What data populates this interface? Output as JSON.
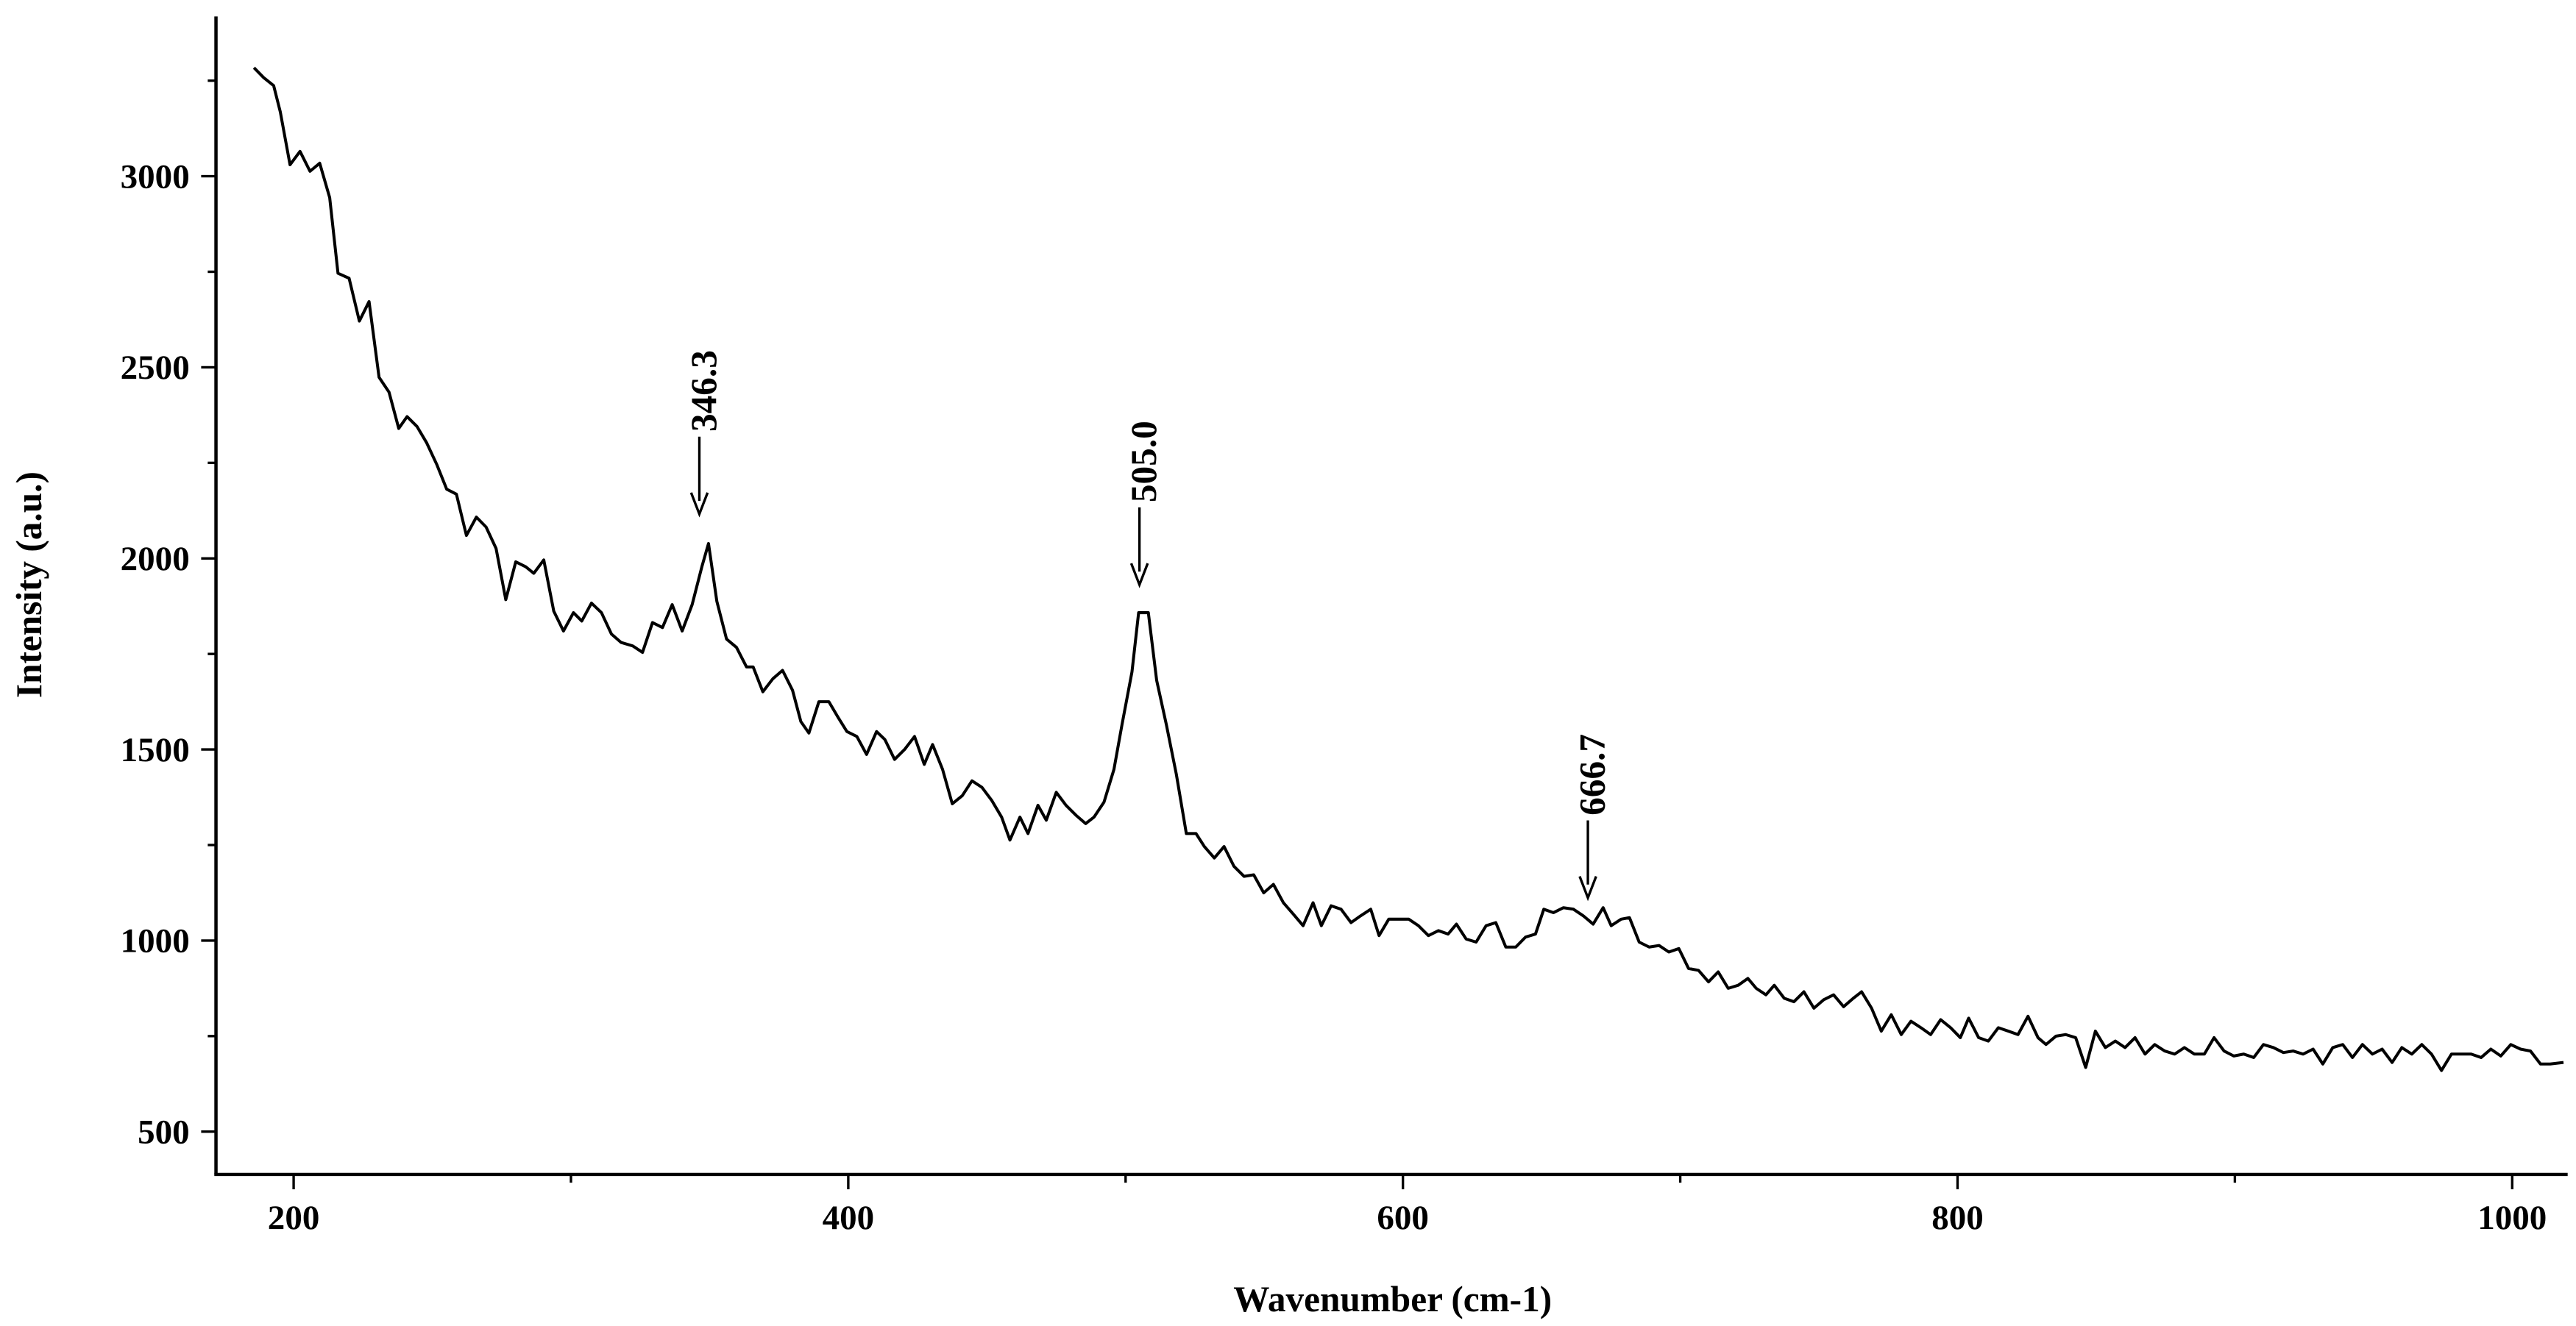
{
  "chart_data": {
    "type": "line",
    "xlabel": "Wavenumber (cm-1)",
    "ylabel": "Intensity (a.u.)",
    "xlim": [
      172,
      1020
    ],
    "ylim": [
      388,
      3418
    ],
    "xticks": [
      200,
      400,
      600,
      800,
      1000
    ],
    "yticks": [
      500,
      1000,
      1500,
      2000,
      2500,
      3000
    ],
    "xminorticks": [
      300,
      500,
      700,
      900
    ],
    "yminorticks": [
      750,
      1250,
      1750,
      2250,
      2750,
      3250
    ],
    "color": "#000000",
    "x": [
      185.7,
      189.2,
      192.8,
      195.2,
      198.7,
      202.3,
      205.9,
      209.4,
      213.0,
      216.0,
      220.0,
      223.7,
      227.2,
      230.8,
      234.4,
      237.9,
      240.9,
      244.5,
      248.0,
      251.6,
      255.2,
      258.7,
      262.3,
      265.9,
      269.4,
      273.0,
      276.5,
      280.1,
      283.7,
      286.6,
      290.2,
      293.8,
      297.3,
      300.9,
      303.9,
      307.4,
      311.0,
      314.6,
      318.1,
      322.3,
      325.8,
      329.4,
      333.0,
      336.5,
      340.1,
      343.7,
      347.2,
      349.6,
      352.6,
      356.1,
      359.7,
      363.3,
      365.7,
      369.2,
      372.8,
      376.3,
      379.9,
      382.9,
      385.8,
      389.4,
      393.0,
      396.5,
      399.5,
      403.1,
      406.6,
      410.2,
      413.2,
      416.7,
      420.3,
      423.9,
      427.4,
      430.4,
      434.0,
      437.5,
      441.1,
      444.6,
      448.2,
      451.8,
      455.3,
      458.3,
      461.9,
      464.8,
      468.4,
      471.4,
      475.0,
      478.5,
      482.1,
      485.6,
      488.6,
      492.2,
      495.8,
      498.7,
      502.3,
      504.7,
      508.2,
      511.2,
      514.7,
      518.3,
      521.9,
      525.4,
      528.4,
      532.0,
      535.5,
      539.1,
      542.7,
      546.2,
      549.8,
      553.3,
      556.9,
      560.5,
      564.0,
      567.6,
      570.6,
      574.1,
      577.7,
      581.3,
      584.8,
      588.4,
      591.4,
      594.9,
      598.5,
      602.1,
      605.6,
      609.2,
      612.8,
      616.3,
      619.3,
      622.8,
      626.4,
      630.0,
      633.5,
      637.1,
      640.7,
      644.2,
      647.8,
      650.8,
      654.3,
      657.9,
      661.5,
      665.0,
      668.6,
      672.2,
      675.1,
      678.7,
      681.7,
      685.2,
      688.8,
      692.4,
      695.9,
      699.5,
      703.0,
      706.6,
      710.2,
      713.7,
      717.3,
      720.9,
      724.4,
      727.4,
      730.9,
      733.9,
      737.5,
      741.0,
      744.6,
      748.2,
      751.7,
      755.3,
      758.9,
      762.4,
      765.4,
      769.0,
      772.5,
      776.1,
      779.7,
      783.2,
      786.8,
      790.3,
      793.9,
      797.5,
      801.0,
      804.0,
      807.6,
      811.1,
      814.7,
      818.3,
      821.8,
      825.4,
      829.0,
      831.9,
      835.5,
      839.0,
      842.6,
      846.2,
      849.7,
      853.3,
      856.9,
      860.4,
      864.0,
      867.6,
      871.1,
      874.7,
      878.3,
      881.8,
      885.4,
      889.0,
      892.5,
      896.1,
      899.6,
      903.2,
      906.8,
      910.3,
      913.9,
      917.5,
      921.0,
      924.6,
      928.2,
      931.7,
      935.3,
      938.9,
      942.4,
      946.0,
      949.6,
      953.1,
      956.7,
      960.2,
      963.8,
      967.4,
      970.9,
      974.5,
      978.1,
      981.6,
      985.2,
      988.8,
      992.3,
      995.9,
      999.5,
      1003.0,
      1006.6,
      1010.2,
      1013.7,
      1018.5
    ],
    "values": [
      3284,
      3258,
      3237,
      3168,
      3030,
      3065,
      3013,
      3034,
      2944,
      2746,
      2733,
      2621,
      2672,
      2474,
      2435,
      2340,
      2371,
      2345,
      2302,
      2246,
      2181,
      2168,
      2060,
      2108,
      2082,
      2026,
      1892,
      1991,
      1978,
      1961,
      1996,
      1862,
      1810,
      1858,
      1836,
      1883,
      1858,
      1802,
      1780,
      1771,
      1754,
      1832,
      1819,
      1879,
      1810,
      1879,
      1978,
      2039,
      1888,
      1789,
      1767,
      1716,
      1716,
      1651,
      1685,
      1707,
      1655,
      1573,
      1543,
      1625,
      1625,
      1582,
      1547,
      1534,
      1487,
      1547,
      1526,
      1474,
      1500,
      1534,
      1461,
      1513,
      1448,
      1358,
      1379,
      1418,
      1401,
      1366,
      1323,
      1263,
      1323,
      1280,
      1354,
      1315,
      1388,
      1354,
      1328,
      1306,
      1323,
      1362,
      1448,
      1565,
      1703,
      1858,
      1858,
      1681,
      1565,
      1435,
      1280,
      1280,
      1246,
      1216,
      1246,
      1194,
      1168,
      1172,
      1125,
      1147,
      1099,
      1069,
      1039,
      1099,
      1039,
      1091,
      1082,
      1047,
      1065,
      1082,
      1013,
      1056,
      1056,
      1056,
      1039,
      1013,
      1026,
      1017,
      1043,
      1004,
      996,
      1039,
      1047,
      983,
      983,
      1009,
      1017,
      1082,
      1073,
      1086,
      1082,
      1065,
      1043,
      1086,
      1039,
      1056,
      1060,
      996,
      983,
      987,
      970,
      979,
      927,
      922,
      892,
      918,
      875,
      883,
      901,
      875,
      858,
      883,
      849,
      840,
      866,
      823,
      845,
      858,
      827,
      849,
      866,
      823,
      763,
      806,
      754,
      789,
      772,
      754,
      793,
      772,
      746,
      797,
      746,
      737,
      772,
      763,
      754,
      802,
      746,
      728,
      750,
      754,
      746,
      668,
      763,
      720,
      737,
      720,
      746,
      703,
      728,
      711,
      703,
      720,
      703,
      703,
      746,
      711,
      698,
      703,
      694,
      728,
      720,
      707,
      711,
      703,
      716,
      677,
      720,
      728,
      694,
      728,
      703,
      716,
      681,
      720,
      703,
      728,
      703,
      660,
      703,
      703,
      703,
      694,
      716,
      698,
      728,
      716,
      711,
      677,
      677,
      681
    ],
    "annotations": [
      {
        "text": "346.3",
        "x": 346.3,
        "y": 2116
      },
      {
        "text": "505.0",
        "x": 505.0,
        "y": 1931
      },
      {
        "text": "666.7",
        "x": 666.7,
        "y": 1112
      }
    ]
  }
}
